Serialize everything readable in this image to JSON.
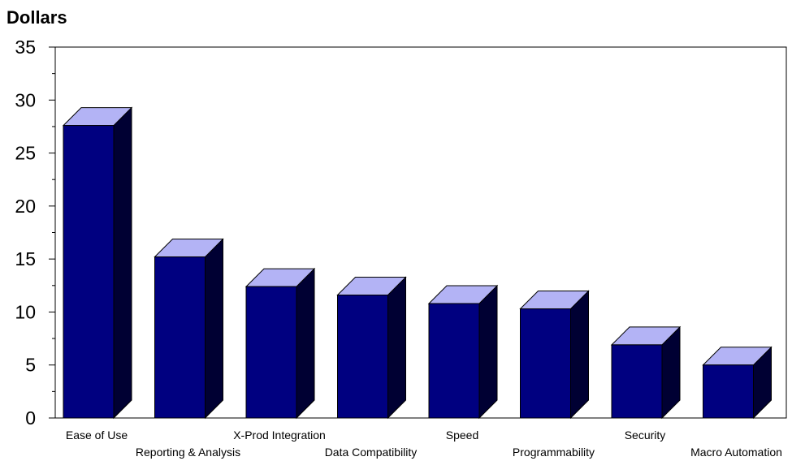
{
  "chart_data": {
    "type": "bar",
    "ylabel": "Dollars",
    "xlabel": "",
    "ylim": [
      0,
      35
    ],
    "yticks": [
      0,
      5,
      10,
      15,
      20,
      25,
      30,
      35
    ],
    "categories": [
      "Ease of Use",
      "Reporting & Analysis",
      "X-Prod Integration",
      "Data Compatibility",
      "Speed",
      "Programmability",
      "Security",
      "Macro Automation"
    ],
    "values": [
      27.6,
      15.2,
      12.4,
      11.6,
      10.8,
      10.3,
      6.9,
      5.0
    ],
    "style": {
      "bar_front": "#000080",
      "bar_top": "#b3b3f5",
      "bar_side": "#000033",
      "bar_outline": "#000000",
      "three_d": true
    }
  }
}
